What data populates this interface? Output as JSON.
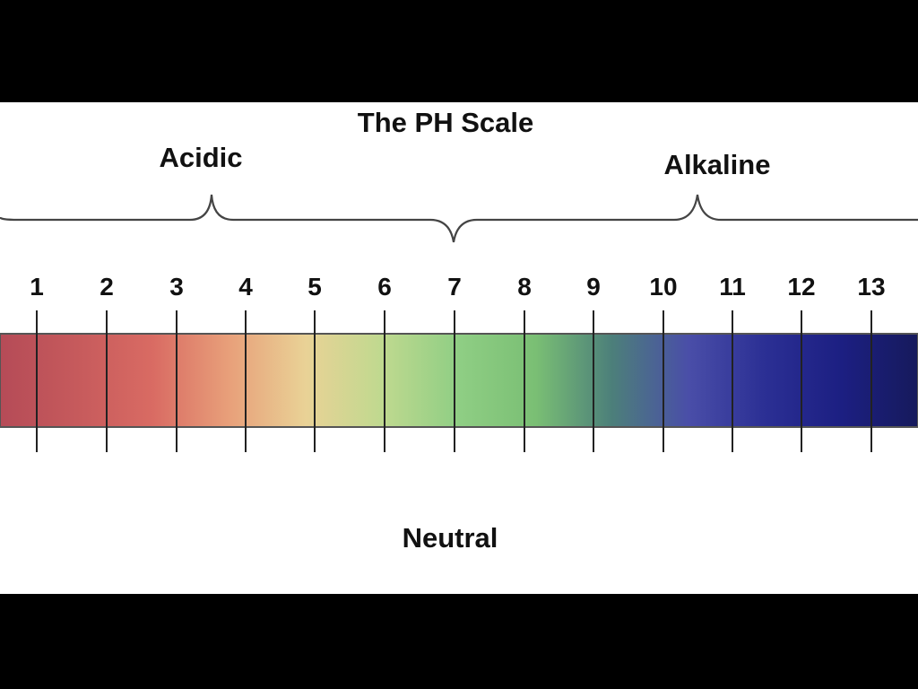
{
  "diagram": {
    "title": "The PH Scale",
    "acidic_label": "Acidic",
    "alkaline_label": "Alkaline",
    "neutral_label": "Neutral",
    "numbers": [
      "1",
      "2",
      "3",
      "4",
      "5",
      "6",
      "7",
      "8",
      "9",
      "10",
      "11",
      "12",
      "13"
    ],
    "gradient_colors": [
      "#b54b57",
      "#c65a5c",
      "#d96b63",
      "#e8a07a",
      "#e9d296",
      "#bfd98f",
      "#8fce84",
      "#7abf74",
      "#4c7f7a",
      "#4a4ea8",
      "#2b2f94",
      "#1c1f82",
      "#161a5c"
    ],
    "bar_border_color": "#555555",
    "tick_color": "#222222",
    "brace_color": "#444444"
  }
}
